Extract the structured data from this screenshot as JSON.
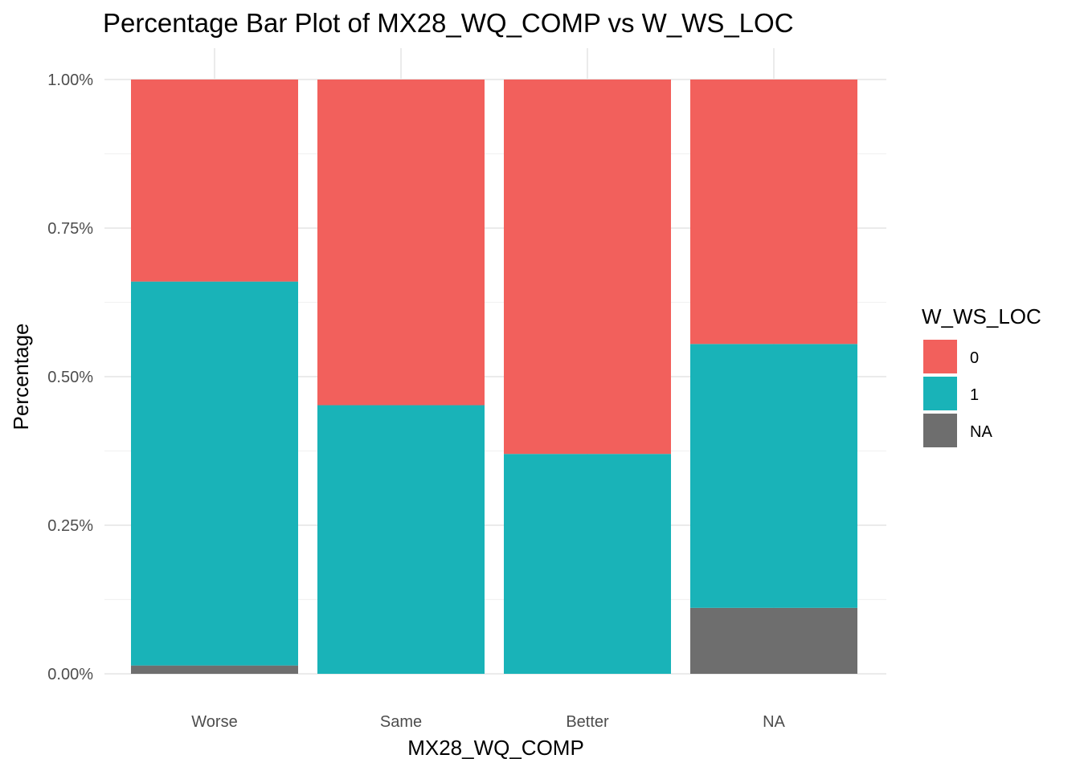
{
  "chart_data": {
    "type": "bar",
    "stacked": true,
    "title": "Percentage Bar Plot of MX28_WQ_COMP vs W_WS_LOC",
    "xlabel": "MX28_WQ_COMP",
    "ylabel": "Percentage",
    "categories": [
      "Worse",
      "Same",
      "Better",
      "NA"
    ],
    "y_ticks": [
      "0.00%",
      "0.25%",
      "0.50%",
      "0.75%",
      "1.00%"
    ],
    "ylim": [
      0,
      1
    ],
    "grid": true,
    "legend": {
      "title": "W_WS_LOC",
      "position": "right",
      "entries": [
        "0",
        "1",
        "NA"
      ]
    },
    "series": [
      {
        "name": "NA",
        "color": "#6e6e6e",
        "values": [
          0.014,
          0.0,
          0.0,
          0.111
        ]
      },
      {
        "name": "1",
        "color": "#19b3b8",
        "values": [
          0.646,
          0.452,
          0.37,
          0.444
        ]
      },
      {
        "name": "0",
        "color": "#f2605c",
        "values": [
          0.34,
          0.548,
          0.63,
          0.445
        ]
      }
    ]
  }
}
